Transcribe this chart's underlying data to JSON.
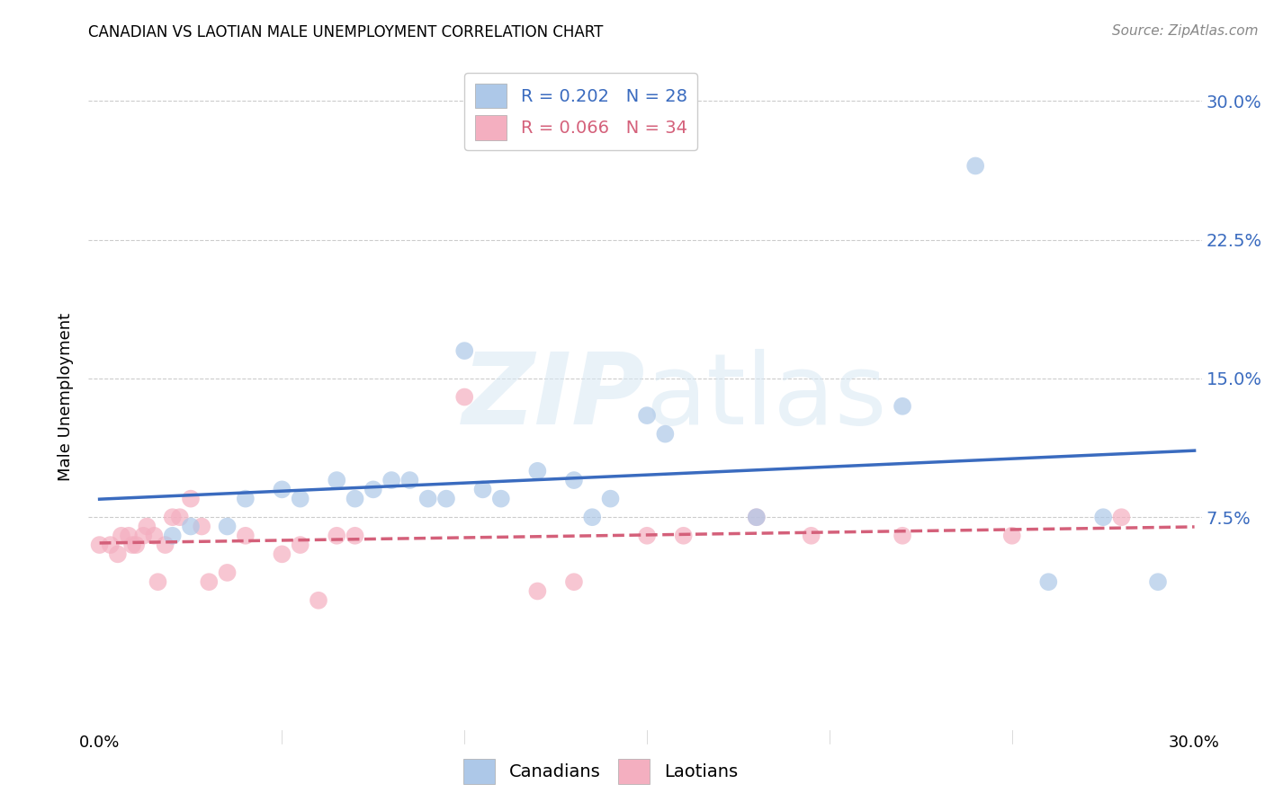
{
  "title": "CANADIAN VS LAOTIAN MALE UNEMPLOYMENT CORRELATION CHART",
  "source": "Source: ZipAtlas.com",
  "ylabel": "Male Unemployment",
  "canadian_R": 0.202,
  "canadian_N": 28,
  "laotian_R": 0.066,
  "laotian_N": 34,
  "canadian_color": "#adc8e8",
  "laotian_color": "#f4afc0",
  "canadian_line_color": "#3a6bbf",
  "laotian_line_color": "#d4607a",
  "xlim": [
    0.0,
    0.3
  ],
  "ylim": [
    -0.04,
    0.32
  ],
  "yticks": [
    0.075,
    0.15,
    0.225,
    0.3
  ],
  "ytick_labels": [
    "7.5%",
    "15.0%",
    "22.5%",
    "30.0%"
  ],
  "canadian_x": [
    0.02,
    0.025,
    0.035,
    0.04,
    0.05,
    0.055,
    0.065,
    0.07,
    0.075,
    0.08,
    0.085,
    0.09,
    0.095,
    0.1,
    0.105,
    0.11,
    0.12,
    0.13,
    0.135,
    0.14,
    0.15,
    0.155,
    0.18,
    0.22,
    0.24,
    0.26,
    0.275,
    0.29
  ],
  "canadian_y": [
    0.065,
    0.07,
    0.07,
    0.085,
    0.09,
    0.085,
    0.095,
    0.085,
    0.09,
    0.095,
    0.095,
    0.085,
    0.085,
    0.165,
    0.09,
    0.085,
    0.1,
    0.095,
    0.075,
    0.085,
    0.13,
    0.12,
    0.075,
    0.135,
    0.265,
    0.04,
    0.075,
    0.04
  ],
  "laotian_x": [
    0.0,
    0.003,
    0.005,
    0.006,
    0.008,
    0.009,
    0.01,
    0.012,
    0.013,
    0.015,
    0.016,
    0.018,
    0.02,
    0.022,
    0.025,
    0.028,
    0.03,
    0.035,
    0.04,
    0.05,
    0.055,
    0.06,
    0.065,
    0.07,
    0.1,
    0.12,
    0.13,
    0.15,
    0.16,
    0.18,
    0.195,
    0.22,
    0.25,
    0.28
  ],
  "laotian_y": [
    0.06,
    0.06,
    0.055,
    0.065,
    0.065,
    0.06,
    0.06,
    0.065,
    0.07,
    0.065,
    0.04,
    0.06,
    0.075,
    0.075,
    0.085,
    0.07,
    0.04,
    0.045,
    0.065,
    0.055,
    0.06,
    0.03,
    0.065,
    0.065,
    0.14,
    0.035,
    0.04,
    0.065,
    0.065,
    0.075,
    0.065,
    0.065,
    0.065,
    0.075
  ],
  "grid_color": "#cccccc",
  "legend_box_color": "#e8e8e8"
}
